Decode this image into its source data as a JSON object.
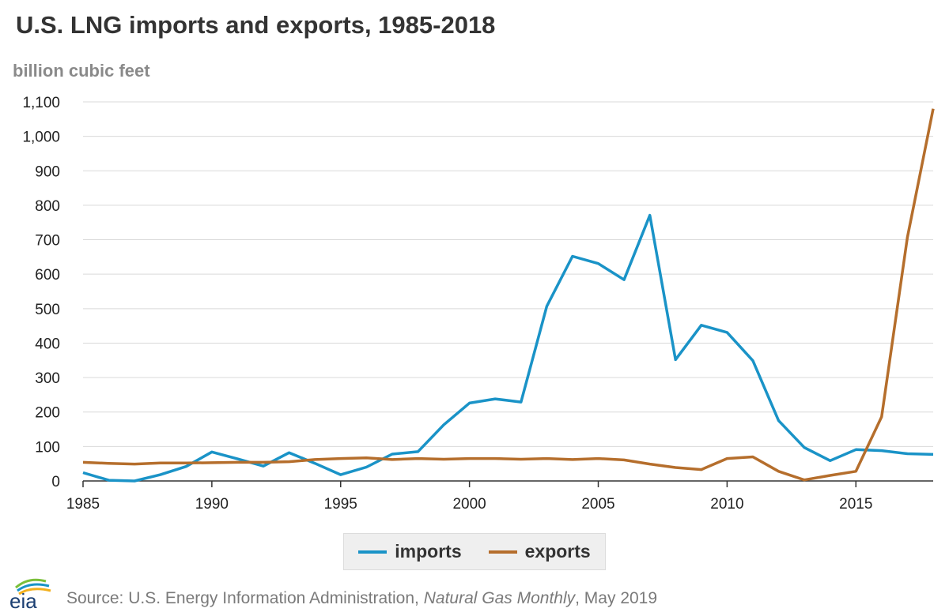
{
  "header": {
    "title": "U.S. LNG imports and exports, 1985-2018",
    "unit_label": "billion cubic feet"
  },
  "legend": {
    "items": [
      {
        "label": "imports",
        "color": "#1a93c7"
      },
      {
        "label": "exports",
        "color": "#b56e2c"
      }
    ]
  },
  "footer": {
    "source_prefix": "Source: U.S. Energy Information Administration, ",
    "source_publication": "Natural Gas Monthly",
    "source_suffix": ", May 2019",
    "logo_text": "eia",
    "logo_icon": "eia-logo-icon"
  },
  "chart_data": {
    "type": "line",
    "title": "U.S. LNG imports and exports, 1985-2018",
    "ylabel": "billion cubic feet",
    "xlabel": "",
    "xlim": [
      1985,
      2018
    ],
    "ylim": [
      0,
      1100
    ],
    "x_ticks": [
      1985,
      1990,
      1995,
      2000,
      2005,
      2010,
      2015
    ],
    "y_ticks": [
      0,
      100,
      200,
      300,
      400,
      500,
      600,
      700,
      800,
      900,
      1000,
      1100
    ],
    "y_tick_labels": [
      "0",
      "100",
      "200",
      "300",
      "400",
      "500",
      "600",
      "700",
      "800",
      "900",
      "1,000",
      "1,100"
    ],
    "grid": "horizontal",
    "legend_position": "bottom-center",
    "x": [
      1985,
      1986,
      1987,
      1988,
      1989,
      1990,
      1991,
      1992,
      1993,
      1994,
      1995,
      1996,
      1997,
      1998,
      1999,
      2000,
      2001,
      2002,
      2003,
      2004,
      2005,
      2006,
      2007,
      2008,
      2009,
      2010,
      2011,
      2012,
      2013,
      2014,
      2015,
      2016,
      2017,
      2018
    ],
    "series": [
      {
        "name": "imports",
        "color": "#1a93c7",
        "values": [
          24,
          2,
          0,
          18,
          42,
          84,
          64,
          43,
          82,
          51,
          18,
          40,
          78,
          85,
          163,
          226,
          238,
          229,
          507,
          652,
          631,
          584,
          771,
          352,
          452,
          431,
          349,
          175,
          97,
          59,
          91,
          88,
          79,
          77
        ]
      },
      {
        "name": "exports",
        "color": "#b56e2c",
        "values": [
          54,
          51,
          49,
          52,
          52,
          53,
          54,
          54,
          56,
          62,
          65,
          67,
          62,
          65,
          63,
          65,
          65,
          63,
          65,
          62,
          65,
          61,
          49,
          39,
          33,
          65,
          70,
          28,
          3,
          16,
          28,
          186,
          707,
          1080
        ]
      }
    ]
  }
}
